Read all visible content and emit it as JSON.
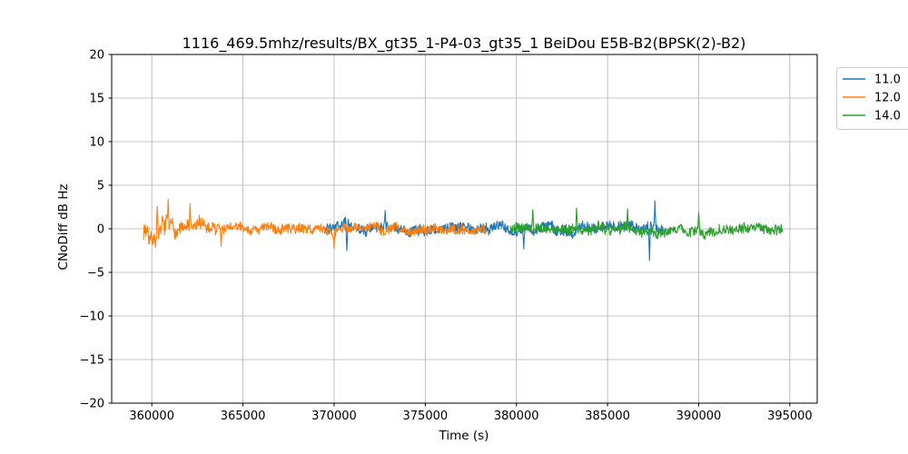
{
  "chart_data": {
    "type": "line",
    "title": "1116_469.5mhz/results/BX_gt35_1-P4-03_gt35_1 BeiDou E5B-B2(BPSK(2)-B2)",
    "xlabel": "Time (s)",
    "ylabel": "CNoDiff dB Hz",
    "xlim": [
      357800,
      396500
    ],
    "ylim": [
      -20,
      20
    ],
    "x_ticks": [
      360000,
      365000,
      370000,
      375000,
      380000,
      385000,
      390000,
      395000
    ],
    "y_ticks": [
      -20,
      -15,
      -10,
      -5,
      0,
      5,
      10,
      15,
      20
    ],
    "grid": true,
    "legend_position": "upper-right-outside",
    "sample_step_s": 25,
    "series": [
      {
        "name": "11.0",
        "color": "#1f77b4",
        "x_start": 369450,
        "x_end": 388050,
        "baseline": 0,
        "wander_amp": 0.6,
        "noise_amp": 0.6,
        "settle_span": 0,
        "seed": 3,
        "spikes": [
          {
            "x": 370700,
            "v": -2.5
          },
          {
            "x": 372800,
            "v": 2.1
          },
          {
            "x": 380400,
            "v": -2.3
          },
          {
            "x": 387300,
            "v": -3.6
          },
          {
            "x": 387600,
            "v": 3.2
          }
        ],
        "description": "CNo difference noise band around 0 dB, roughly +/-1 dB, spikes to -3.6 and +3.2 dB near 387500 s"
      },
      {
        "name": "12.0",
        "color": "#ff7f0e",
        "x_start": 359550,
        "x_end": 378350,
        "baseline": 0,
        "start_wander_amp": 2.0,
        "wander_amp": 0.5,
        "start_noise_amp": 0.9,
        "noise_amp": 0.55,
        "settle_span": 5500,
        "seed": 7,
        "spikes": [
          {
            "x": 360300,
            "v": 2.6
          },
          {
            "x": 360900,
            "v": 3.4
          },
          {
            "x": 362100,
            "v": 2.9
          },
          {
            "x": 363800,
            "v": -2.0
          },
          {
            "x": 370000,
            "v": -2.3
          }
        ],
        "description": "Large slow oscillations up to about +3.4/-2 dB before 365000 s, settling to ~+/-1 dB noise around 0"
      },
      {
        "name": "14.0",
        "color": "#2ca02c",
        "x_start": 379650,
        "x_end": 394600,
        "baseline": 0,
        "wander_amp": 0.5,
        "noise_amp": 0.55,
        "settle_span": 0,
        "seed": 5,
        "spikes": [
          {
            "x": 380900,
            "v": 2.2
          },
          {
            "x": 383300,
            "v": 2.4
          },
          {
            "x": 386100,
            "v": 2.3
          },
          {
            "x": 390000,
            "v": 1.9
          }
        ],
        "description": "Noise band around 0 dB, roughly +/-1 dB, occasional peaks to ~2.4 dB"
      }
    ]
  },
  "legend": {
    "entries": [
      {
        "label": "11.0",
        "color": "#1f77b4"
      },
      {
        "label": "12.0",
        "color": "#ff7f0e"
      },
      {
        "label": "14.0",
        "color": "#2ca02c"
      }
    ]
  }
}
